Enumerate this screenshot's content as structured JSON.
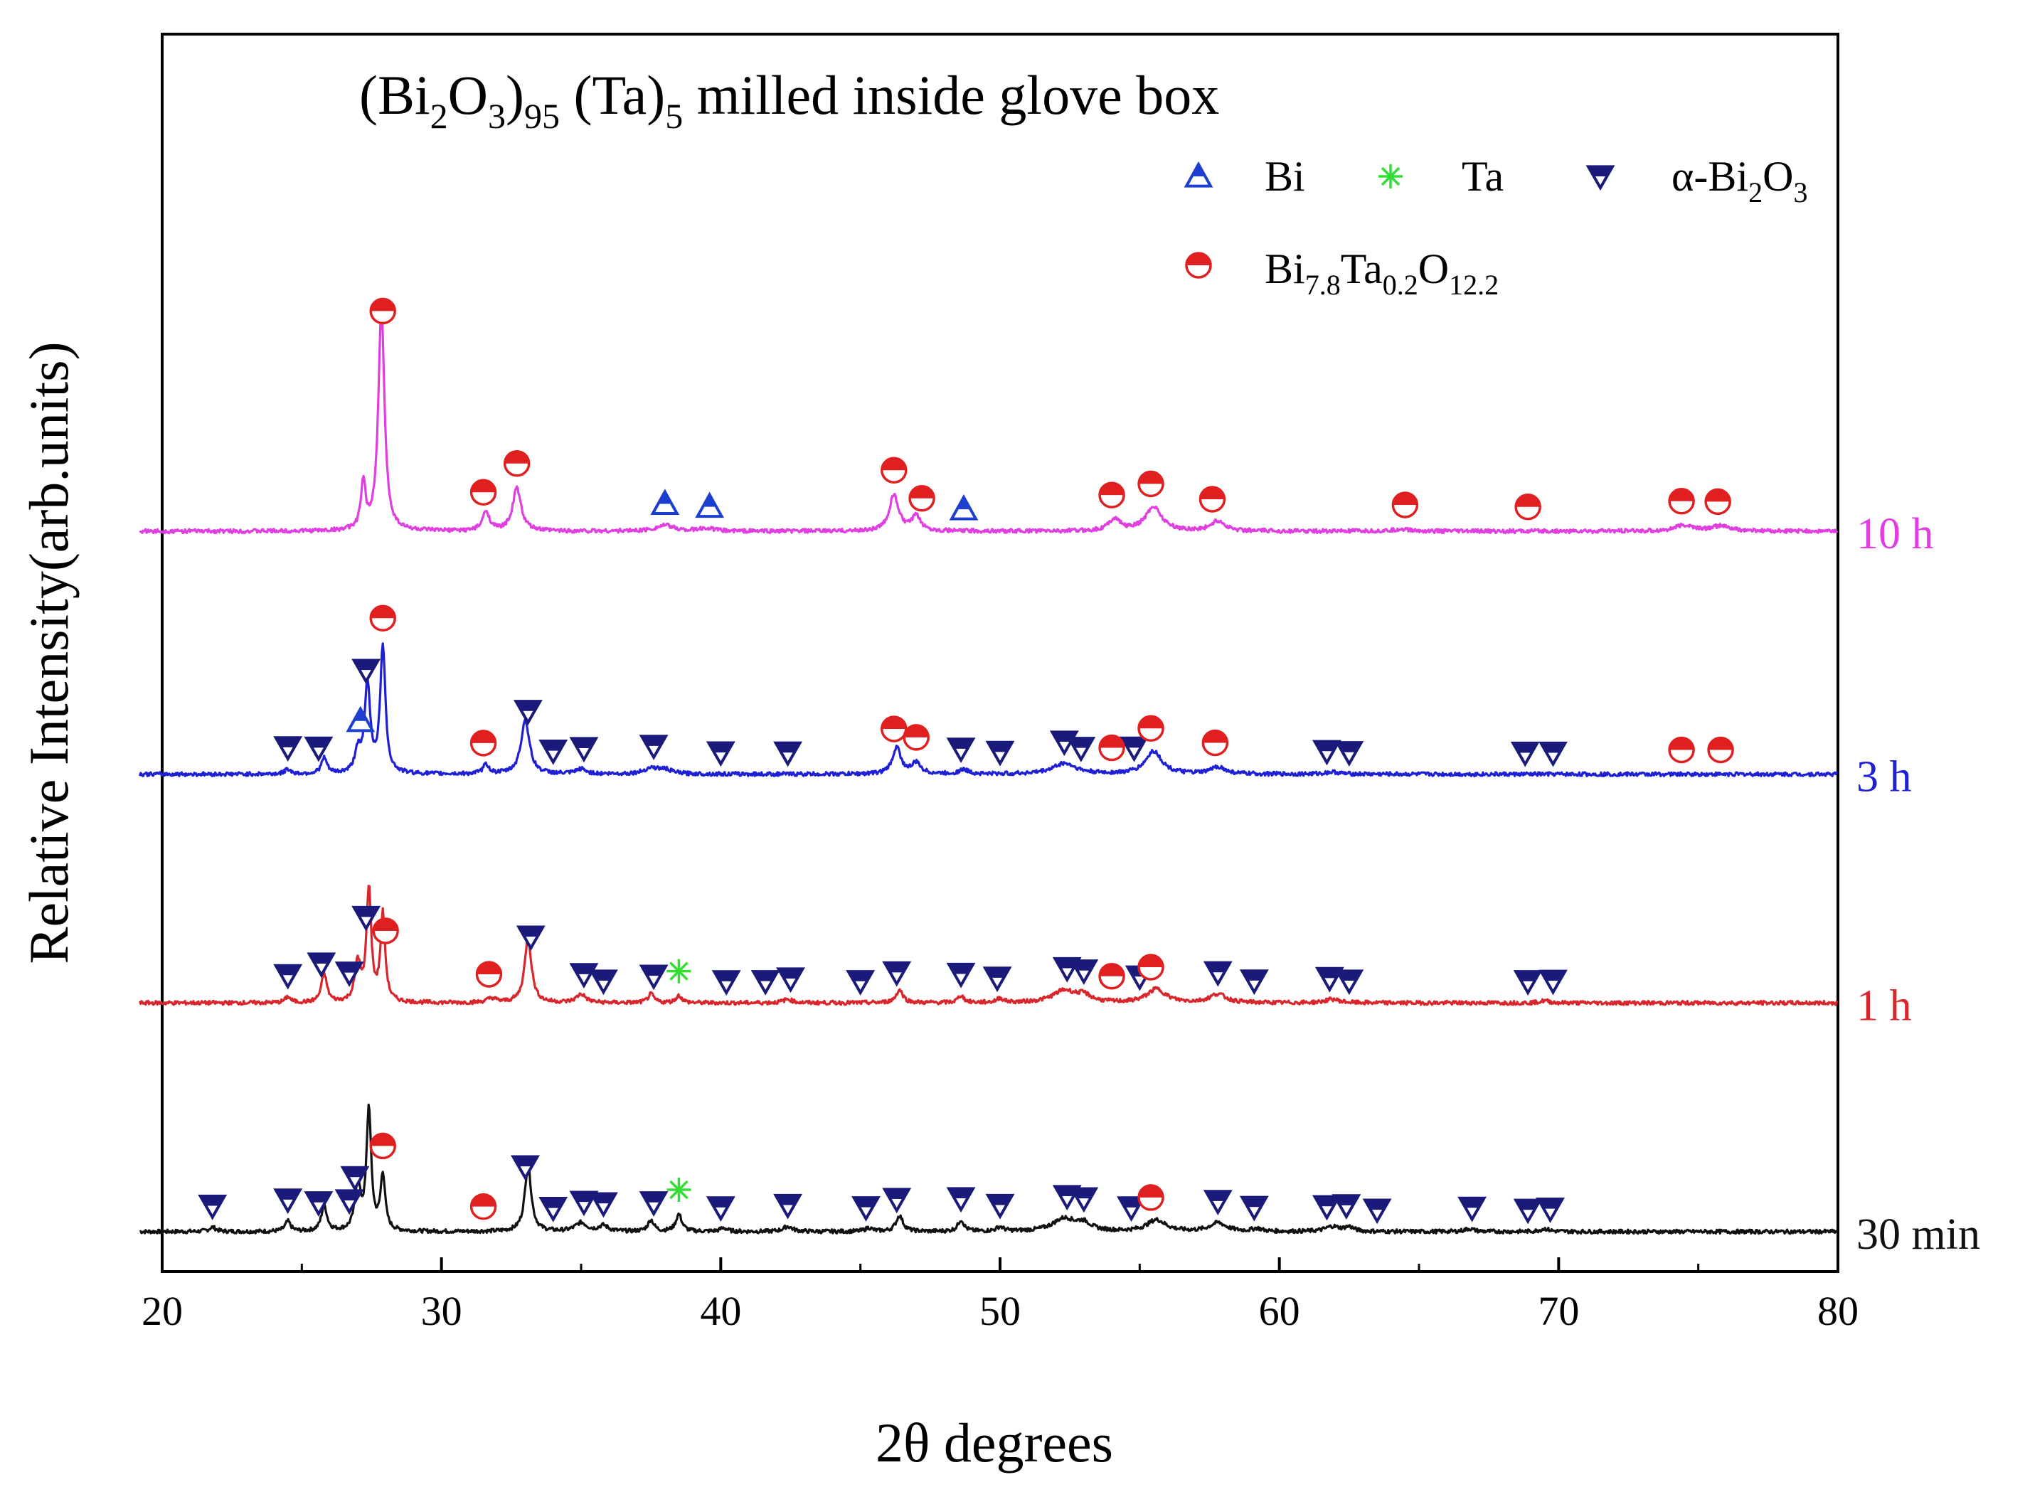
{
  "colors": {
    "s30": "#111111",
    "s1h": "#d9262c",
    "s3h": "#1f1fd6",
    "s10h": "#e03ee0",
    "bi_marker": "#1d3fd0",
    "ta_marker": "#33dd33",
    "alpha_marker": "#1a1a7a",
    "bta_marker": "#e02020",
    "axis": "#000000"
  },
  "chart_data": {
    "type": "line",
    "title_parts": {
      "p1": "(Bi",
      "s1": "2",
      "p2": "O",
      "s2": "3",
      "p3": ")",
      "s3": "95",
      "p4": " (Ta)",
      "s4": "5",
      "p5": " milled inside glove box"
    },
    "xlabel": "2θ degrees",
    "ylabel": "Relative Intensity(arb.units)",
    "xlim": [
      20,
      80
    ],
    "xticks": [
      "20",
      "30",
      "40",
      "50",
      "60",
      "70",
      "80"
    ],
    "ylim": [
      0,
      100
    ],
    "legend": {
      "bi": "Bi",
      "ta": "Ta",
      "alpha": {
        "p1": "α-Bi",
        "s1": "2",
        "p2": "O",
        "s2": "3"
      },
      "bta": {
        "p1": "Bi",
        "s1": "7.8",
        "p2": "Ta",
        "s2": "0.2",
        "p3": "O",
        "s3": "12.2"
      }
    },
    "series": [
      {
        "name": "30 min",
        "color_key": "s30",
        "baseline": 2,
        "peaks": [
          [
            21.8,
            0.6,
            0.15
          ],
          [
            24.5,
            1.4,
            0.12
          ],
          [
            25.8,
            3.6,
            0.12
          ],
          [
            27.0,
            6.5,
            0.12
          ],
          [
            27.4,
            17.0,
            0.1
          ],
          [
            27.9,
            7.8,
            0.1
          ],
          [
            33.1,
            9.2,
            0.14
          ],
          [
            35.0,
            1.2,
            0.25
          ],
          [
            35.8,
            0.8,
            0.2
          ],
          [
            37.5,
            1.6,
            0.13
          ],
          [
            38.5,
            2.4,
            0.13
          ],
          [
            40.1,
            0.5,
            0.15
          ],
          [
            42.4,
            0.7,
            0.2
          ],
          [
            45.3,
            0.5,
            0.15
          ],
          [
            46.4,
            2.2,
            0.15
          ],
          [
            48.6,
            1.6,
            0.13
          ],
          [
            50.0,
            0.6,
            0.15
          ],
          [
            52.3,
            1.8,
            0.5
          ],
          [
            53.0,
            1.0,
            0.3
          ],
          [
            55.6,
            1.6,
            0.4
          ],
          [
            57.8,
            1.2,
            0.35
          ],
          [
            59.2,
            0.4,
            0.2
          ],
          [
            61.9,
            0.7,
            0.3
          ],
          [
            62.5,
            0.6,
            0.2
          ],
          [
            66.8,
            0.4,
            0.2
          ],
          [
            69.5,
            0.4,
            0.2
          ]
        ]
      },
      {
        "name": "1 h",
        "color_key": "s1h",
        "baseline": 34,
        "peaks": [
          [
            24.5,
            0.8,
            0.12
          ],
          [
            25.8,
            4.0,
            0.12
          ],
          [
            27.0,
            5.5,
            0.12
          ],
          [
            27.4,
            15.8,
            0.1
          ],
          [
            27.9,
            12.3,
            0.1
          ],
          [
            31.8,
            0.6,
            0.2
          ],
          [
            33.1,
            9.0,
            0.15
          ],
          [
            35.0,
            1.2,
            0.2
          ],
          [
            37.5,
            1.2,
            0.13
          ],
          [
            38.5,
            1.0,
            0.13
          ],
          [
            42.4,
            0.5,
            0.2
          ],
          [
            46.4,
            1.8,
            0.15
          ],
          [
            48.6,
            1.0,
            0.13
          ],
          [
            50.0,
            0.6,
            0.15
          ],
          [
            52.3,
            1.7,
            0.5
          ],
          [
            53.0,
            0.9,
            0.3
          ],
          [
            55.6,
            1.9,
            0.4
          ],
          [
            57.8,
            1.2,
            0.35
          ],
          [
            61.9,
            0.5,
            0.3
          ],
          [
            69.5,
            0.3,
            0.2
          ]
        ]
      },
      {
        "name": "3 h",
        "color_key": "s3h",
        "baseline": 66,
        "peaks": [
          [
            24.5,
            0.7,
            0.12
          ],
          [
            25.8,
            2.2,
            0.12
          ],
          [
            27.0,
            3.0,
            0.12
          ],
          [
            27.35,
            12.4,
            0.12
          ],
          [
            27.9,
            17.8,
            0.11
          ],
          [
            31.6,
            1.3,
            0.13
          ],
          [
            33.0,
            7.6,
            0.18
          ],
          [
            35.0,
            0.7,
            0.2
          ],
          [
            37.5,
            0.8,
            0.3
          ],
          [
            38.0,
            0.6,
            0.3
          ],
          [
            46.3,
            3.7,
            0.18
          ],
          [
            47.0,
            1.5,
            0.2
          ],
          [
            48.7,
            0.6,
            0.2
          ],
          [
            52.3,
            1.5,
            0.5
          ],
          [
            55.5,
            3.2,
            0.35
          ],
          [
            57.8,
            1.0,
            0.3
          ],
          [
            61.9,
            0.3,
            0.3
          ]
        ]
      },
      {
        "name": "10 h",
        "color_key": "s10h",
        "baseline": 100,
        "peaks": [
          [
            27.2,
            6.4,
            0.1
          ],
          [
            27.85,
            31.3,
            0.13
          ],
          [
            31.6,
            2.7,
            0.15
          ],
          [
            32.7,
            6.0,
            0.18
          ],
          [
            38.0,
            0.8,
            0.4
          ],
          [
            39.5,
            0.4,
            0.3
          ],
          [
            46.2,
            5.0,
            0.2
          ],
          [
            47.0,
            2.0,
            0.2
          ],
          [
            54.1,
            1.7,
            0.25
          ],
          [
            55.5,
            3.4,
            0.35
          ],
          [
            57.8,
            1.4,
            0.3
          ],
          [
            64.4,
            0.3,
            0.3
          ],
          [
            74.5,
            0.8,
            0.4
          ],
          [
            75.8,
            0.7,
            0.4
          ]
        ]
      }
    ],
    "markers": {
      "bi": [
        [
          27.1,
          2
        ],
        [
          38.0,
          3
        ],
        [
          39.6,
          3
        ],
        [
          48.7,
          3
        ]
      ],
      "ta": [
        [
          38.5,
          0
        ],
        [
          38.5,
          1
        ]
      ],
      "alpha": [
        [
          21.8,
          0
        ],
        [
          24.5,
          0
        ],
        [
          25.6,
          0
        ],
        [
          26.7,
          0
        ],
        [
          26.9,
          0
        ],
        [
          33.0,
          0
        ],
        [
          34.0,
          0
        ],
        [
          35.1,
          0
        ],
        [
          35.8,
          0
        ],
        [
          37.6,
          0
        ],
        [
          40.0,
          0
        ],
        [
          42.4,
          0
        ],
        [
          45.2,
          0
        ],
        [
          46.3,
          0
        ],
        [
          48.6,
          0
        ],
        [
          50.0,
          0
        ],
        [
          52.4,
          0
        ],
        [
          53.0,
          0
        ],
        [
          54.7,
          0
        ],
        [
          57.8,
          0
        ],
        [
          59.1,
          0
        ],
        [
          61.7,
          0
        ],
        [
          62.4,
          0
        ],
        [
          63.5,
          0
        ],
        [
          66.9,
          0
        ],
        [
          68.9,
          0
        ],
        [
          69.7,
          0
        ],
        [
          24.5,
          1
        ],
        [
          25.7,
          1
        ],
        [
          26.7,
          1
        ],
        [
          27.3,
          1
        ],
        [
          33.2,
          1
        ],
        [
          35.1,
          1
        ],
        [
          35.8,
          1
        ],
        [
          37.6,
          1
        ],
        [
          40.2,
          1
        ],
        [
          41.6,
          1
        ],
        [
          42.5,
          1
        ],
        [
          45.0,
          1
        ],
        [
          46.3,
          1
        ],
        [
          48.6,
          1
        ],
        [
          49.9,
          1
        ],
        [
          52.4,
          1
        ],
        [
          53.0,
          1
        ],
        [
          55.0,
          1
        ],
        [
          57.8,
          1
        ],
        [
          59.1,
          1
        ],
        [
          61.8,
          1
        ],
        [
          62.5,
          1
        ],
        [
          68.9,
          1
        ],
        [
          69.8,
          1
        ],
        [
          24.5,
          2
        ],
        [
          25.6,
          2
        ],
        [
          27.3,
          2
        ],
        [
          33.1,
          2
        ],
        [
          34.0,
          2
        ],
        [
          35.1,
          2
        ],
        [
          37.6,
          2
        ],
        [
          40.0,
          2
        ],
        [
          42.4,
          2
        ],
        [
          48.6,
          2
        ],
        [
          50.0,
          2
        ],
        [
          52.3,
          2
        ],
        [
          52.9,
          2
        ],
        [
          54.8,
          2
        ],
        [
          61.7,
          2
        ],
        [
          62.5,
          2
        ],
        [
          68.8,
          2
        ],
        [
          69.8,
          2
        ]
      ],
      "bta": [
        [
          27.9,
          0
        ],
        [
          31.5,
          0
        ],
        [
          55.4,
          0
        ],
        [
          28.0,
          1
        ],
        [
          31.7,
          1
        ],
        [
          54.0,
          1
        ],
        [
          55.4,
          1
        ],
        [
          27.9,
          2
        ],
        [
          31.5,
          2
        ],
        [
          46.2,
          2
        ],
        [
          47.0,
          2
        ],
        [
          54.0,
          2
        ],
        [
          55.4,
          2
        ],
        [
          57.7,
          2
        ],
        [
          74.4,
          2
        ],
        [
          75.8,
          2
        ],
        [
          27.9,
          3
        ],
        [
          31.5,
          3
        ],
        [
          32.7,
          3
        ],
        [
          46.2,
          3
        ],
        [
          47.2,
          3
        ],
        [
          54.0,
          3
        ],
        [
          55.4,
          3
        ],
        [
          57.6,
          3
        ],
        [
          64.5,
          3
        ],
        [
          68.9,
          3
        ],
        [
          74.4,
          3
        ],
        [
          75.7,
          3
        ]
      ]
    }
  }
}
